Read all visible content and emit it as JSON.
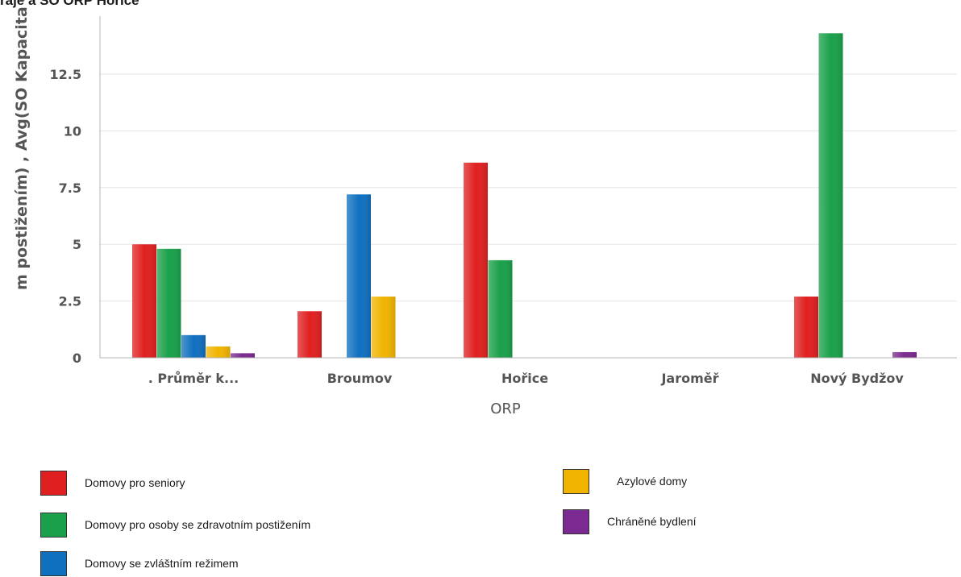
{
  "chart_data": {
    "type": "bar",
    "title": "raje a SO ORP Hořice",
    "xlabel": "ORP",
    "ylabel": "m postižením) , Avg(SO Kapacita domov",
    "categories": [
      ". Průměr k...",
      "Broumov",
      "Hořice",
      "Jaroměř",
      "Nový Bydžov"
    ],
    "yticks": [
      "0",
      "2.5",
      "5",
      "7.5",
      "10",
      "12.5"
    ],
    "ylim": [
      0,
      14
    ],
    "grid": true,
    "legend_position": "bottom",
    "series": [
      {
        "name": "Domovy pro seniory",
        "color": "#e02020",
        "values": [
          5.0,
          2.05,
          8.6,
          0,
          2.7
        ]
      },
      {
        "name": "Domovy pro osoby se zdravotním postižením",
        "color": "#1aa04a",
        "values": [
          4.8,
          0,
          4.3,
          0,
          14.3
        ]
      },
      {
        "name": "Domovy se zvláštním režimem",
        "color": "#1070c0",
        "values": [
          1.0,
          7.2,
          0,
          0,
          0
        ]
      },
      {
        "name": "Azylové domy",
        "color": "#f0b400",
        "values": [
          0.5,
          2.7,
          0,
          0,
          0
        ]
      },
      {
        "name": "Chráněné bydlení",
        "color": "#7a2a90",
        "values": [
          0.2,
          0,
          0,
          0,
          0.25
        ]
      }
    ]
  }
}
